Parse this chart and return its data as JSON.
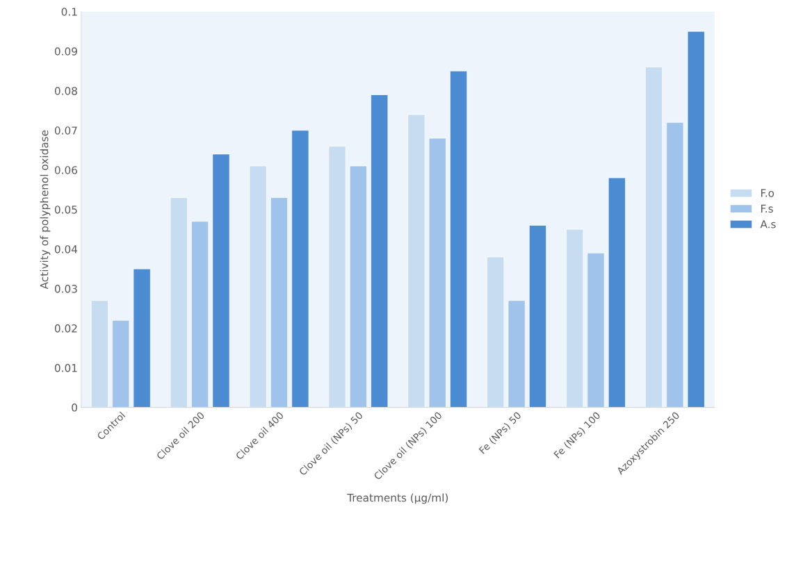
{
  "chart_data": {
    "type": "bar",
    "xlabel": "Treatments (µg/ml)",
    "ylabel": "Activity of polyphenol oxidase",
    "categories": [
      "Control",
      "Clove oil 200",
      "Clove oil 400",
      "Clove oil (NPs) 50",
      "Clove oil (NPs) 100",
      "Fe (NPs) 50",
      "Fe (NPs) 100",
      "Azoxystrobin 250"
    ],
    "series": [
      {
        "name": "F.o",
        "color": "#c6dcf1",
        "values": [
          0.027,
          0.053,
          0.061,
          0.066,
          0.074,
          0.038,
          0.045,
          0.086
        ]
      },
      {
        "name": "F.s",
        "color": "#9fc3ea",
        "values": [
          0.022,
          0.047,
          0.053,
          0.061,
          0.068,
          0.027,
          0.039,
          0.072
        ]
      },
      {
        "name": "A.s",
        "color": "#4a8bd2",
        "values": [
          0.035,
          0.064,
          0.07,
          0.079,
          0.085,
          0.046,
          0.058,
          0.095
        ]
      }
    ],
    "ylim": [
      0,
      0.1
    ],
    "yticks": [
      0,
      0.01,
      0.02,
      0.03,
      0.04,
      0.05,
      0.06,
      0.07,
      0.08,
      0.09,
      0.1
    ],
    "grid": false,
    "legend": "right"
  }
}
